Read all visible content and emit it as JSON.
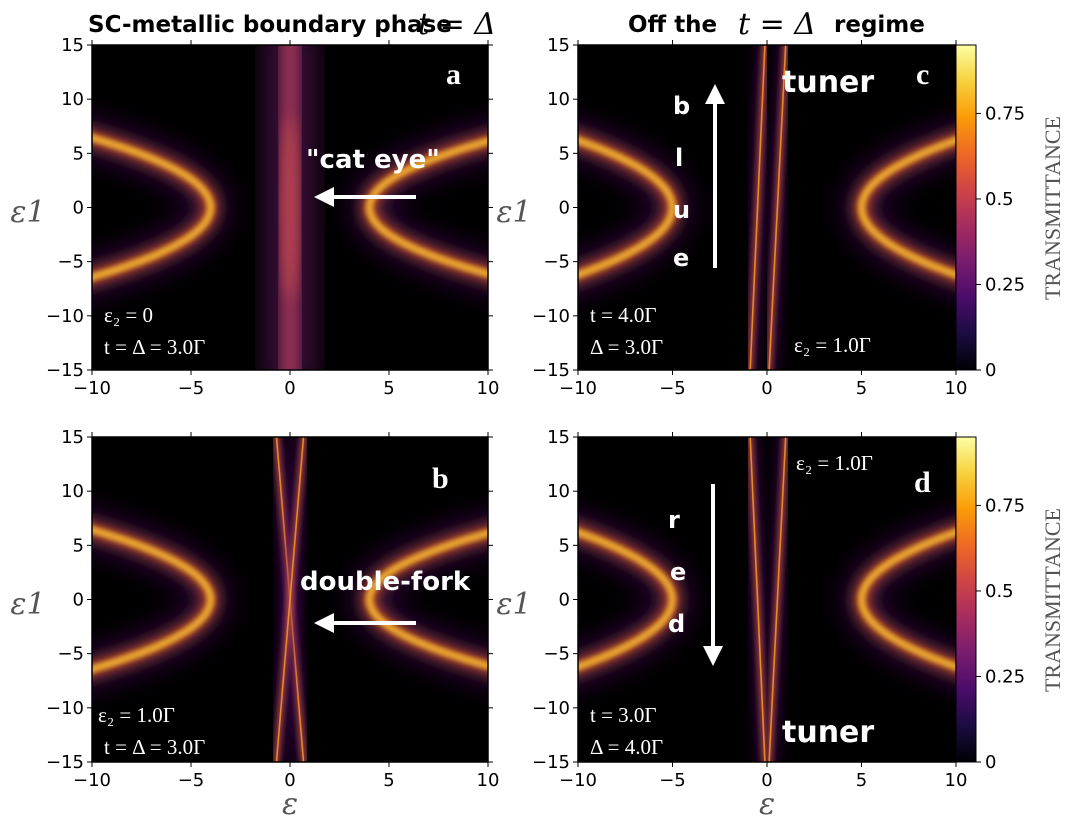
{
  "titles": {
    "left": {
      "text": "SC-metallic boundary phase",
      "math": "t = Δ"
    },
    "right": {
      "pre": "Off the",
      "math": "t = Δ",
      "post": "regime"
    }
  },
  "colors": {
    "arrow": "#ffffff",
    "background": "#000000"
  },
  "colorbar": {
    "label": "TRANSMITTANCE",
    "ticks": [
      "0",
      "0.25",
      "0.5",
      "0.75"
    ],
    "tick_values": [
      0,
      0.25,
      0.5,
      0.75
    ],
    "range": [
      0,
      0.95
    ],
    "stops": [
      "#000004",
      "#1b0c41",
      "#4a0c6b",
      "#781c6d",
      "#a52c60",
      "#cf4446",
      "#ed6925",
      "#fb9b06",
      "#f7d13d",
      "#fcffa4"
    ]
  },
  "chart_data": [
    {
      "type": "heatmap",
      "panel": "a",
      "xlabel": "ε",
      "ylabel": "ε1",
      "xlim": [
        -10,
        10
      ],
      "ylim": [
        -15,
        15
      ],
      "xticks": [
        -10,
        -5,
        0,
        5,
        10
      ],
      "yticks": [
        -15,
        -10,
        -5,
        0,
        5,
        10,
        15
      ],
      "xtick_labels": [
        "−10",
        "−5",
        "0",
        "5",
        "10"
      ],
      "ytick_labels": [
        "−15",
        "−10",
        "−5",
        "0",
        "5",
        "10",
        "15"
      ],
      "params": [
        "ε₂ = 0",
        "t = Δ = 3.0Γ"
      ],
      "annotations": [
        {
          "text": "\"cat eye\"",
          "arrow": "left"
        }
      ],
      "features": {
        "left_branch": {
          "vertex": [
            -4,
            0
          ],
          "curvature": 0.145,
          "direction": "left"
        },
        "right_branch": {
          "vertex": [
            4,
            0
          ],
          "curvature": 0.16,
          "direction": "right"
        },
        "central_band": {
          "x": 0,
          "width": 0.5,
          "peak": 0.55
        }
      }
    },
    {
      "type": "heatmap",
      "panel": "b",
      "xlabel": "ε",
      "ylabel": "ε1",
      "xlim": [
        -10,
        10
      ],
      "ylim": [
        -15,
        15
      ],
      "xticks": [
        -10,
        -5,
        0,
        5,
        10
      ],
      "yticks": [
        -15,
        -10,
        -5,
        0,
        5,
        10,
        15
      ],
      "xtick_labels": [
        "−10",
        "−5",
        "0",
        "5",
        "10"
      ],
      "ytick_labels": [
        "−15",
        "−10",
        "−5",
        "0",
        "5",
        "10",
        "15"
      ],
      "params": [
        "ε₂ = 1.0Γ",
        "t = Δ = 3.0Γ"
      ],
      "annotations": [
        {
          "text": "double-fork",
          "arrow": "left"
        }
      ],
      "features": {
        "left_branch": {
          "vertex": [
            -4,
            0
          ],
          "curvature": 0.145,
          "direction": "left"
        },
        "right_branch": {
          "vertex": [
            4,
            0
          ],
          "curvature": 0.16,
          "direction": "right"
        },
        "fork_lines": [
          {
            "x_top": -0.7,
            "x_bottom": 0.7
          },
          {
            "x_top": 0.7,
            "x_bottom": -0.7
          }
        ]
      }
    },
    {
      "type": "heatmap",
      "panel": "c",
      "xlabel": "ε",
      "ylabel": "ε1",
      "xlim": [
        -10,
        10
      ],
      "ylim": [
        -15,
        15
      ],
      "xticks": [
        -10,
        -5,
        0,
        5,
        10
      ],
      "yticks": [
        -15,
        -10,
        -5,
        0,
        5,
        10,
        15
      ],
      "xtick_labels": [
        "−10",
        "−5",
        "0",
        "5",
        "10"
      ],
      "ytick_labels": [
        "−15",
        "−10",
        "−5",
        "0",
        "5",
        "10",
        "15"
      ],
      "params": [
        "t = 4.0Γ",
        "Δ = 3.0Γ",
        "ε₂ = 1.0Γ"
      ],
      "annotations": [
        {
          "text": "tuner"
        },
        {
          "text": "b l u e",
          "letters": [
            "b",
            "l",
            "u",
            "e"
          ],
          "arrow": "up"
        }
      ],
      "features": {
        "left_branch": {
          "vertex": [
            -5,
            0
          ],
          "curvature": 0.13,
          "direction": "left"
        },
        "right_branch": {
          "vertex": [
            5,
            0
          ],
          "curvature": 0.13,
          "direction": "right"
        },
        "lines": [
          {
            "x_top": -0.1,
            "x_bottom": -0.9
          },
          {
            "x_top": 1.0,
            "x_bottom": 0.1
          }
        ]
      }
    },
    {
      "type": "heatmap",
      "panel": "d",
      "xlabel": "ε",
      "ylabel": "ε1",
      "xlim": [
        -10,
        10
      ],
      "ylim": [
        -15,
        15
      ],
      "xticks": [
        -10,
        -5,
        0,
        5,
        10
      ],
      "yticks": [
        -15,
        -10,
        -5,
        0,
        5,
        10,
        15
      ],
      "xtick_labels": [
        "−10",
        "−5",
        "0",
        "5",
        "10"
      ],
      "ytick_labels": [
        "−15",
        "−10",
        "−5",
        "0",
        "5",
        "10",
        "15"
      ],
      "params": [
        "t = 3.0Γ",
        "Δ = 4.0Γ",
        "ε₂ = 1.0Γ"
      ],
      "annotations": [
        {
          "text": "tuner"
        },
        {
          "text": "r e d",
          "letters": [
            "r",
            "e",
            "d"
          ],
          "arrow": "down"
        }
      ],
      "features": {
        "left_branch": {
          "vertex": [
            -5,
            0
          ],
          "curvature": 0.13,
          "direction": "left"
        },
        "right_branch": {
          "vertex": [
            5,
            0
          ],
          "curvature": 0.13,
          "direction": "right"
        },
        "lines": [
          {
            "x_top": -0.9,
            "x_bottom": -0.1
          },
          {
            "x_top": 1.0,
            "x_bottom": 0.1
          }
        ]
      }
    }
  ]
}
